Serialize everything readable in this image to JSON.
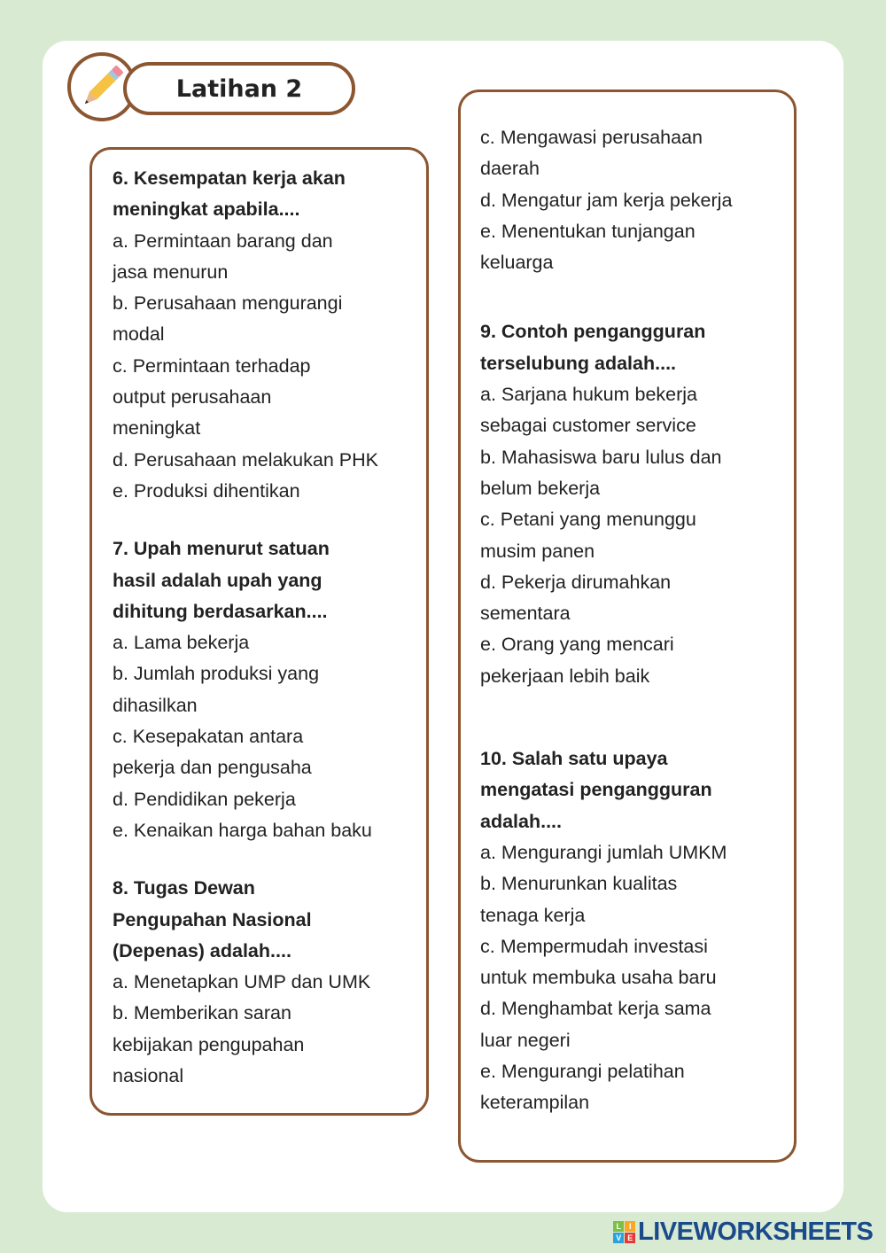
{
  "header": {
    "title": "Latihan 2",
    "icon": "pencil-icon"
  },
  "left": [
    {
      "q": [
        "6. Kesempatan kerja akan",
        "meningkat apabila...."
      ],
      "opts": [
        "a. Permintaan barang dan",
        "jasa menurun",
        "b. Perusahaan mengurangi",
        "modal",
        "c. Permintaan terhadap",
        "output perusahaan",
        "meningkat",
        "d. Perusahaan melakukan PHK",
        "e. Produksi dihentikan"
      ]
    },
    {
      "q": [
        "7. Upah menurut satuan",
        "hasil adalah upah yang",
        "dihitung berdasarkan...."
      ],
      "opts": [
        "a. Lama bekerja",
        "b. Jumlah produksi yang",
        "dihasilkan",
        "c. Kesepakatan antara",
        "pekerja dan pengusaha",
        "d. Pendidikan pekerja",
        "e. Kenaikan harga bahan baku"
      ]
    },
    {
      "q": [
        "8. Tugas Dewan",
        "Pengupahan Nasional",
        "(Depenas) adalah...."
      ],
      "opts": [
        "a. Menetapkan UMP dan UMK",
        "b. Memberikan saran",
        "kebijakan pengupahan",
        "nasional"
      ]
    }
  ],
  "right": [
    {
      "q": [],
      "opts": [
        "c. Mengawasi perusahaan",
        "daerah",
        "d. Mengatur jam kerja pekerja",
        "e. Menentukan tunjangan",
        "keluarga"
      ]
    },
    {
      "q": [
        "9. Contoh pengangguran",
        "terselubung adalah...."
      ],
      "opts": [
        "a. Sarjana hukum bekerja",
        "sebagai customer service",
        "b. Mahasiswa baru lulus dan",
        "belum bekerja",
        "c. Petani yang menunggu",
        "musim panen",
        "d. Pekerja dirumahkan",
        "sementara",
        "e. Orang yang mencari",
        "pekerjaan lebih baik"
      ]
    },
    {
      "q": [
        "10. Salah satu upaya",
        "mengatasi pengangguran",
        "adalah...."
      ],
      "opts": [
        "a. Mengurangi jumlah UMKM",
        "b. Menurunkan kualitas",
        "tenaga kerja",
        "c. Mempermudah investasi",
        "untuk membuka usaha baru",
        "d. Menghambat kerja sama",
        "luar negeri",
        "e. Mengurangi pelatihan",
        "keterampilan"
      ]
    }
  ],
  "footer": {
    "logo": "LIVEWORKSHEETS",
    "logo_badge": [
      "L",
      "I",
      "V",
      "E"
    ]
  },
  "colors": {
    "background": "#d8ebd2",
    "border": "#8b5631",
    "logo": "#1b4a8a"
  }
}
